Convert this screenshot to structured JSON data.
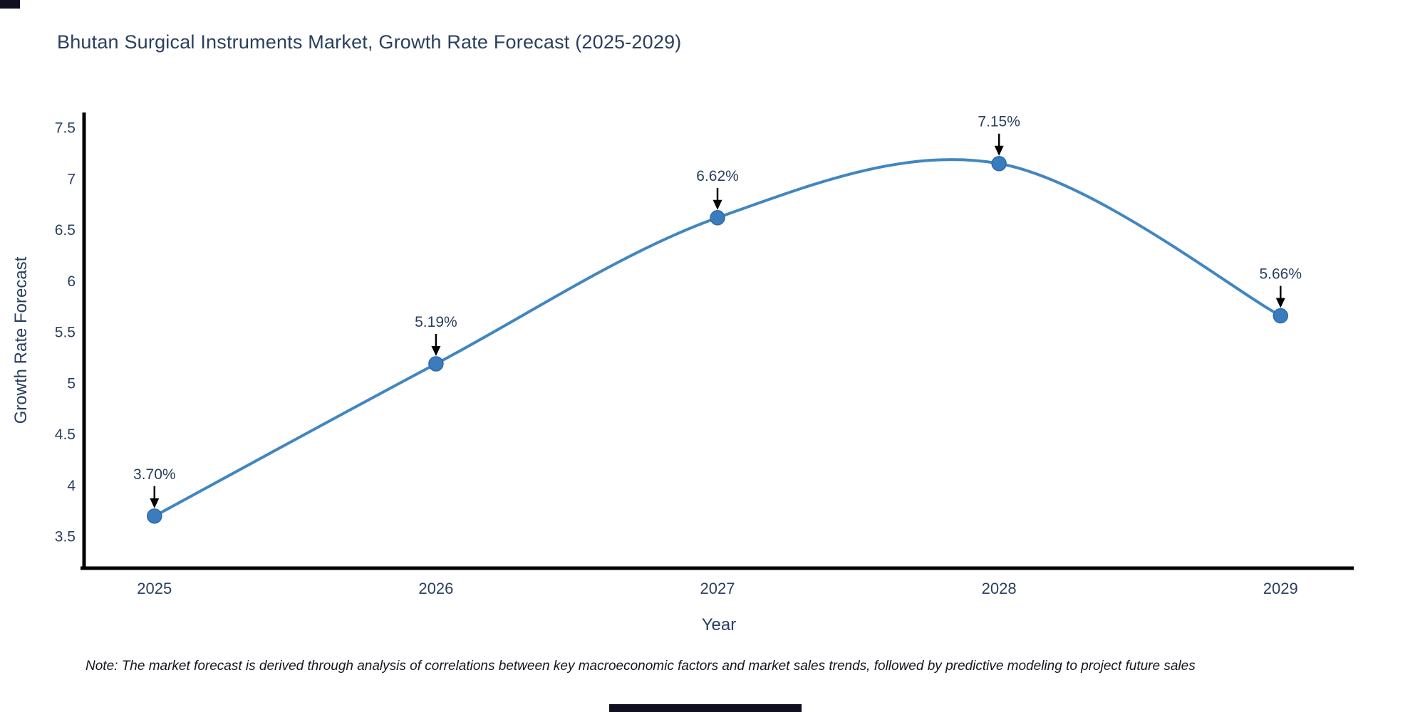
{
  "chart_data": {
    "type": "line",
    "title": "Bhutan Surgical Instruments Market, Growth Rate Forecast (2025-2029)",
    "xlabel": "Year",
    "ylabel": "Growth Rate Forecast",
    "x": [
      2025,
      2026,
      2027,
      2028,
      2029
    ],
    "series": [
      {
        "name": "Growth Rate Forecast",
        "values": [
          3.7,
          5.19,
          6.62,
          7.15,
          5.66
        ]
      }
    ],
    "point_labels": [
      "3.70%",
      "5.19%",
      "6.62%",
      "7.15%",
      "5.66%"
    ],
    "x_tick_labels": [
      "2025",
      "2026",
      "2027",
      "2028",
      "2029"
    ],
    "y_ticks": [
      3.5,
      4,
      4.5,
      5,
      5.5,
      6,
      6.5,
      7,
      7.5
    ],
    "xlim": [
      2024.75,
      2029.26
    ],
    "ylim": [
      3.19,
      7.65
    ],
    "grid": false,
    "legend": false,
    "line_shape": "spline",
    "annotation_style": "black-down-arrows",
    "colors": {
      "line": "#4286c0",
      "marker": "#3a7cbe",
      "marker_edge": "#2f6ba6",
      "axis": "#000000",
      "tick_text": "#2a3f5f",
      "annotation_text": "#2a3f5f",
      "annotation_arrow": "#000000",
      "background": "#ffffff"
    }
  },
  "note": {
    "text": "Note: The market forecast is derived through analysis of correlations between key macroeconomic factors and market sales trends, followed by predictive modeling to project future sales"
  }
}
